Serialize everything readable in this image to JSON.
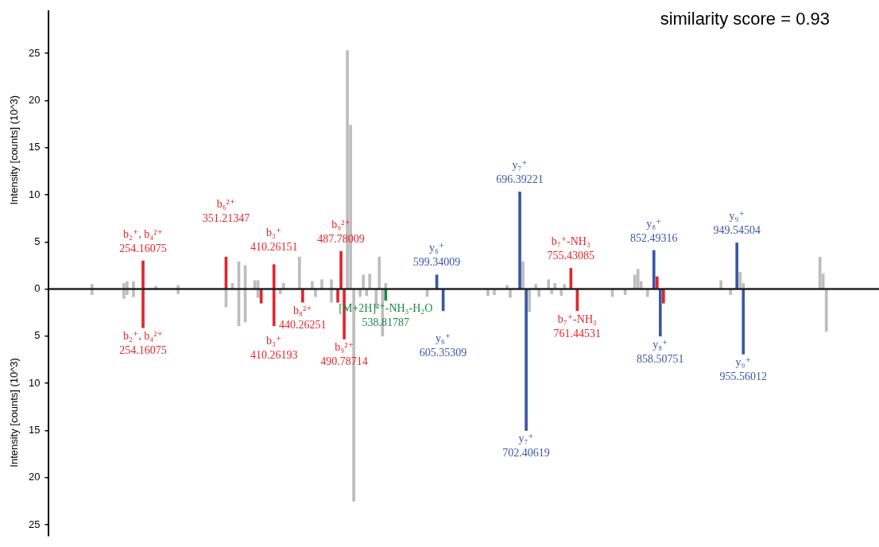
{
  "chart_data": {
    "type": "bar",
    "ylabel": "Intensity [counts] (10^3)",
    "tick_labels": "y",
    "ylim": [
      -26.2,
      29.5
    ],
    "yticks": [
      {
        "value": -25,
        "label": "25"
      },
      {
        "value": -20,
        "label": "20"
      },
      {
        "value": -15,
        "label": "15"
      },
      {
        "value": -10,
        "label": "10"
      },
      {
        "value": -5,
        "label": "5"
      },
      0,
      5,
      10,
      15,
      20,
      25
    ],
    "annotations": [
      "similarity score = 0.93",
      {
        "text": "b₂⁺, b₄²⁺\n254.16075",
        "y": 3.0
      },
      {
        "text": "b₆²⁺\n351.21347",
        "y": 3.4
      },
      {
        "text": "b₃⁺\n410.26151",
        "y": 2.6
      },
      {
        "text": "b₉²⁺\n487.78009",
        "y": 4.0
      },
      {
        "text": "y₆⁺\n599.34009",
        "y": 1.5
      },
      {
        "text": "y₇⁺\n696.39221",
        "y": 10.3
      },
      {
        "text": "b₇⁺-NH₃\n755.43085",
        "y": 2.2
      },
      {
        "text": "y₈⁺\n852.49316",
        "y": 4.1
      },
      {
        "text": "y₉⁺\n949.54504",
        "y": 4.9
      },
      {
        "text": "b₂⁺, b₄²⁺\n254.16075",
        "y": -4.1
      },
      {
        "text": "b₃⁺\n410.26193",
        "y": -3.9
      },
      {
        "text": "b₈²⁺\n440.26251",
        "y": -1.4
      },
      {
        "text": "b₉²⁺\n490.78714",
        "y": -5.3
      },
      {
        "text": "[M+2H]²⁺-NH₃-H₂O\n538.81787",
        "y": -1.2
      },
      {
        "text": "y₆⁺\n605.35309",
        "y": -2.3
      },
      {
        "text": "y₇⁺\n702.40619",
        "y": -15.0
      },
      {
        "text": "b₇⁺-NH₃\n761.44531",
        "y": -2.3
      },
      {
        "text": "y₈⁺\n858.50751",
        "y": -5.0
      },
      {
        "text": "y₉⁺\n955.56012",
        "y": -6.9
      }
    ],
    "categories": [
      null,
      null,
      null,
      null,
      null,
      null,
      null,
      null,
      null,
      null,
      null,
      null,
      null,
      null,
      null,
      null,
      null,
      null,
      null,
      null,
      null,
      null,
      null,
      null,
      null,
      null,
      null,
      null,
      null,
      null,
      null,
      null,
      null,
      null,
      null,
      null,
      null,
      null,
      null,
      null,
      null,
      null,
      null,
      null,
      null,
      null,
      null,
      null,
      null,
      null,
      null,
      null,
      null,
      null,
      null,
      null,
      null,
      null,
      null,
      null,
      null,
      null,
      null,
      null,
      null,
      null,
      null,
      null,
      null,
      null,
      null,
      null,
      null,
      null,
      null,
      null,
      null,
      null,
      null,
      null,
      null,
      null,
      null,
      null,
      null,
      null,
      null,
      null,
      null,
      null,
      null,
      null,
      null,
      null,
      null,
      null,
      null,
      null,
      null,
      null,
      null,
      null,
      null,
      null,
      null,
      null,
      null,
      null,
      null,
      null,
      null,
      null,
      null,
      null,
      null,
      null,
      null,
      null,
      null,
      null,
      null,
      null,
      null,
      null,
      null,
      null,
      null,
      null,
      null,
      null,
      null,
      null,
      null,
      null,
      null,
      null,
      null,
      null,
      null,
      null,
      null,
      null,
      null,
      null,
      null,
      null,
      null,
      null,
      null,
      null,
      null,
      null,
      null,
      null,
      null,
      null,
      null,
      null,
      null,
      null,
      null,
      null,
      null,
      null,
      null,
      null,
      null,
      null,
      null,
      null,
      null,
      null,
      null,
      null,
      null,
      null,
      null,
      null,
      null,
      null,
      null,
      null,
      null,
      null,
      null,
      null,
      null,
      null,
      null,
      null,
      null,
      null,
      null,
      null,
      null,
      null,
      null,
      null,
      null,
      null,
      null,
      null,
      null,
      null,
      null,
      null,
      null,
      null,
      null,
      null,
      null,
      null,
      null,
      null,
      null,
      null,
      null,
      null,
      null,
      null,
      null,
      null,
      null,
      null,
      null,
      null,
      null,
      null,
      null,
      null,
      null,
      null,
      null,
      null,
      null,
      null,
      null,
      null,
      null,
      null,
      null,
      null,
      null,
      null,
      null,
      null,
      null,
      null,
      null,
      null,
      null,
      null,
      null,
      null,
      null,
      null,
      null,
      null,
      null,
      null
    ],
    "series": [
      {
        "values": [
          null,
          null,
          null,
          null,
          null,
          null,
          null,
          null,
          null,
          null,
          null,
          null,
          null,
          0.5,
          null,
          null,
          null,
          null,
          null,
          null,
          null,
          null,
          null,
          0.6,
          0.8,
          null,
          0.8,
          null,
          null,
          3.0,
          null,
          null,
          null,
          0.3,
          null,
          null,
          null,
          null,
          null,
          null,
          0.4,
          null,
          null,
          null,
          null,
          null,
          null,
          null,
          null,
          null,
          null,
          null,
          null,
          null,
          null,
          3.4,
          null,
          0.6,
          null,
          2.9,
          null,
          2.5,
          null,
          null,
          0.9,
          0.9,
          null,
          null,
          null,
          null,
          2.6,
          null,
          null,
          0.6,
          null,
          null,
          null,
          null,
          3.4,
          null,
          null,
          null,
          0.8,
          null,
          null,
          1.0,
          null,
          null,
          1.0,
          null,
          null,
          4.0,
          null,
          25.3,
          17.4,
          null,
          null,
          null,
          1.5,
          null,
          1.6,
          null,
          null,
          3.4,
          null,
          0.6,
          null,
          null,
          null,
          null,
          null,
          null,
          null,
          null,
          null,
          null,
          null,
          null,
          null,
          null,
          null,
          1.5,
          null,
          null,
          null,
          null,
          null,
          null,
          null,
          null,
          null,
          null,
          null,
          null,
          null,
          null,
          null,
          null,
          null,
          null,
          null,
          null,
          null,
          0.4,
          null,
          null,
          null,
          10.3,
          2.9,
          null,
          null,
          null,
          0.5,
          null,
          null,
          null,
          1.0,
          null,
          0.6,
          null,
          null,
          0.5,
          null,
          2.2,
          null,
          null,
          null,
          null,
          null,
          null,
          null,
          null,
          null,
          null,
          null,
          null,
          null,
          null,
          null,
          null,
          null,
          null,
          null,
          1.5,
          2.1,
          0.8,
          null,
          null,
          null,
          4.1,
          1.3,
          null,
          null,
          null,
          null,
          null,
          null,
          null,
          null,
          null,
          null,
          null,
          null,
          null,
          null,
          null,
          null,
          null,
          null,
          null,
          0.9,
          null,
          null,
          null,
          null,
          4.9,
          1.8,
          0.6,
          null,
          null,
          null,
          null,
          null,
          null,
          null,
          null,
          null,
          null,
          null,
          null,
          null,
          null,
          null,
          null,
          null,
          null,
          null,
          null,
          null,
          null,
          null,
          3.4,
          1.6,
          null,
          null,
          null,
          null,
          null,
          null,
          null,
          null,
          null,
          null,
          null,
          null,
          null,
          null,
          null,
          null,
          null
        ],
        "colors": [
          null,
          null,
          null,
          null,
          null,
          null,
          null,
          null,
          null,
          null,
          null,
          null,
          null,
          "#bdbdbd",
          null,
          null,
          null,
          null,
          null,
          null,
          null,
          null,
          null,
          "#bdbdbd",
          "#bdbdbd",
          null,
          "#bdbdbd",
          null,
          null,
          "#e2252b",
          null,
          null,
          null,
          "#bdbdbd",
          null,
          null,
          null,
          null,
          null,
          null,
          "#bdbdbd",
          null,
          null,
          null,
          null,
          null,
          null,
          null,
          null,
          null,
          null,
          null,
          null,
          null,
          null,
          "#e2252b",
          null,
          "#bdbdbd",
          null,
          "#bdbdbd",
          null,
          "#bdbdbd",
          null,
          null,
          "#bdbdbd",
          "#bdbdbd",
          null,
          null,
          null,
          null,
          "#e2252b",
          null,
          null,
          "#bdbdbd",
          null,
          null,
          null,
          null,
          "#bdbdbd",
          null,
          null,
          null,
          "#bdbdbd",
          null,
          null,
          "#bdbdbd",
          null,
          null,
          "#bdbdbd",
          null,
          null,
          "#e2252b",
          null,
          "#bdbdbd",
          "#bdbdbd",
          null,
          null,
          null,
          "#bdbdbd",
          null,
          "#bdbdbd",
          null,
          null,
          "#bdbdbd",
          null,
          "#bdbdbd",
          null,
          null,
          null,
          null,
          null,
          null,
          null,
          null,
          null,
          null,
          null,
          null,
          null,
          null,
          null,
          "#3b56a6",
          null,
          null,
          null,
          null,
          null,
          null,
          null,
          null,
          null,
          null,
          null,
          null,
          null,
          null,
          null,
          null,
          null,
          null,
          null,
          null,
          null,
          "#bdbdbd",
          null,
          null,
          null,
          "#3b56a6",
          "#bdbdbd",
          null,
          null,
          null,
          "#bdbdbd",
          null,
          null,
          null,
          "#bdbdbd",
          null,
          "#bdbdbd",
          null,
          null,
          "#bdbdbd",
          null,
          "#e2252b",
          null,
          null,
          null,
          null,
          null,
          null,
          null,
          null,
          null,
          null,
          null,
          null,
          null,
          null,
          null,
          null,
          null,
          null,
          null,
          "#bdbdbd",
          "#bdbdbd",
          "#bdbdbd",
          null,
          null,
          null,
          "#3b56a6",
          "#e2252b",
          null,
          null,
          null,
          null,
          null,
          null,
          null,
          null,
          null,
          null,
          null,
          null,
          null,
          null,
          null,
          null,
          null,
          null,
          null,
          "#bdbdbd",
          null,
          null,
          null,
          null,
          "#3b56a6",
          "#bdbdbd",
          "#bdbdbd",
          null,
          null,
          null,
          null,
          null,
          null,
          null,
          null,
          null,
          null,
          null,
          null,
          null,
          null,
          null,
          null,
          null,
          null,
          null,
          null,
          null,
          null,
          null,
          "#bdbdbd",
          "#bdbdbd",
          null,
          null,
          null,
          null,
          null,
          null,
          null,
          null,
          null,
          null,
          null,
          null,
          null,
          null,
          null,
          null,
          null
        ]
      },
      {
        "values": [
          null,
          null,
          null,
          null,
          null,
          null,
          null,
          null,
          null,
          null,
          null,
          null,
          null,
          -0.6,
          null,
          null,
          null,
          null,
          null,
          null,
          null,
          null,
          null,
          -1.0,
          -0.6,
          null,
          -0.8,
          null,
          null,
          -4.1,
          null,
          null,
          null,
          null,
          null,
          null,
          null,
          null,
          null,
          null,
          -0.5,
          null,
          null,
          null,
          null,
          null,
          null,
          null,
          null,
          null,
          null,
          null,
          null,
          null,
          null,
          -1.9,
          null,
          null,
          null,
          -3.9,
          null,
          -3.5,
          null,
          null,
          null,
          -0.9,
          -1.5,
          null,
          null,
          null,
          -3.9,
          null,
          -0.5,
          null,
          null,
          null,
          null,
          null,
          null,
          -1.4,
          null,
          null,
          null,
          -0.8,
          null,
          null,
          null,
          null,
          -1.4,
          null,
          -1.4,
          null,
          -5.3,
          null,
          null,
          -22.5,
          null,
          -0.8,
          null,
          -0.7,
          null,
          null,
          -2.0,
          null,
          -5.0,
          -1.2,
          null,
          null,
          null,
          null,
          null,
          null,
          null,
          null,
          null,
          null,
          null,
          null,
          -0.8,
          null,
          null,
          null,
          null,
          -2.3,
          null,
          null,
          null,
          null,
          null,
          null,
          null,
          null,
          null,
          null,
          null,
          null,
          null,
          -0.7,
          null,
          -0.6,
          null,
          null,
          null,
          null,
          -0.9,
          null,
          null,
          null,
          null,
          -15.0,
          -2.4,
          null,
          null,
          -0.8,
          null,
          null,
          null,
          -0.5,
          null,
          null,
          -0.7,
          null,
          null,
          null,
          null,
          -2.3,
          null,
          null,
          null,
          null,
          null,
          null,
          null,
          null,
          null,
          null,
          -0.8,
          null,
          null,
          null,
          -0.6,
          null,
          null,
          null,
          null,
          null,
          null,
          -0.8,
          null,
          null,
          null,
          -5.0,
          -1.5,
          null,
          null,
          null,
          null,
          null,
          null,
          null,
          null,
          null,
          null,
          null,
          null,
          null,
          null,
          null,
          null,
          null,
          null,
          null,
          null,
          -0.6,
          null,
          null,
          null,
          -6.9,
          null,
          null,
          null,
          null,
          null,
          null,
          null,
          null,
          null,
          null,
          null,
          null,
          null,
          null,
          null,
          null,
          null,
          null,
          null,
          null,
          null,
          null,
          null,
          null,
          null,
          -4.5,
          null,
          null,
          null,
          null,
          null,
          null,
          null,
          null,
          null,
          null,
          null,
          null,
          null,
          null,
          null,
          null
        ],
        "colors": [
          null,
          null,
          null,
          null,
          null,
          null,
          null,
          null,
          null,
          null,
          null,
          null,
          null,
          "#bdbdbd",
          null,
          null,
          null,
          null,
          null,
          null,
          null,
          null,
          null,
          "#bdbdbd",
          "#bdbdbd",
          null,
          "#bdbdbd",
          null,
          null,
          "#e2252b",
          null,
          null,
          null,
          null,
          null,
          null,
          null,
          null,
          null,
          null,
          "#bdbdbd",
          null,
          null,
          null,
          null,
          null,
          null,
          null,
          null,
          null,
          null,
          null,
          null,
          null,
          null,
          "#bdbdbd",
          null,
          null,
          null,
          "#bdbdbd",
          null,
          "#bdbdbd",
          null,
          null,
          null,
          "#bdbdbd",
          "#e2252b",
          null,
          null,
          null,
          "#e2252b",
          null,
          "#bdbdbd",
          null,
          null,
          null,
          null,
          null,
          null,
          "#e2252b",
          null,
          null,
          null,
          "#bdbdbd",
          null,
          null,
          null,
          null,
          "#bdbdbd",
          null,
          "#e2252b",
          null,
          "#e2252b",
          null,
          null,
          "#bdbdbd",
          null,
          "#bdbdbd",
          null,
          "#bdbdbd",
          null,
          null,
          "#bdbdbd",
          null,
          "#bdbdbd",
          "#18894a",
          null,
          null,
          null,
          null,
          null,
          null,
          null,
          null,
          null,
          null,
          null,
          null,
          "#bdbdbd",
          null,
          null,
          null,
          null,
          "#3b56a6",
          null,
          null,
          null,
          null,
          null,
          null,
          null,
          null,
          null,
          null,
          null,
          null,
          null,
          "#bdbdbd",
          null,
          "#bdbdbd",
          null,
          null,
          null,
          null,
          "#bdbdbd",
          null,
          null,
          null,
          null,
          "#3b56a6",
          "#bdbdbd",
          null,
          null,
          "#bdbdbd",
          null,
          null,
          null,
          "#bdbdbd",
          null,
          null,
          "#bdbdbd",
          null,
          null,
          null,
          null,
          "#e2252b",
          null,
          null,
          null,
          null,
          null,
          null,
          null,
          null,
          null,
          null,
          "#bdbdbd",
          null,
          null,
          null,
          "#bdbdbd",
          null,
          null,
          null,
          null,
          null,
          null,
          "#bdbdbd",
          null,
          null,
          null,
          "#3b56a6",
          "#e2252b",
          null,
          null,
          null,
          null,
          null,
          null,
          null,
          null,
          null,
          null,
          null,
          null,
          null,
          null,
          null,
          null,
          null,
          null,
          null,
          null,
          "#bdbdbd",
          null,
          null,
          null,
          "#3b56a6",
          null,
          null,
          null,
          null,
          null,
          null,
          null,
          null,
          null,
          null,
          null,
          null,
          null,
          "#bdbdbd",
          null,
          null,
          null,
          null,
          null,
          null,
          null,
          null,
          null,
          null,
          null,
          "#bdbdbd",
          null,
          null,
          null,
          null,
          null,
          null,
          null,
          null,
          null,
          null,
          null,
          null,
          null,
          null,
          null,
          null
        ]
      }
    ]
  }
}
